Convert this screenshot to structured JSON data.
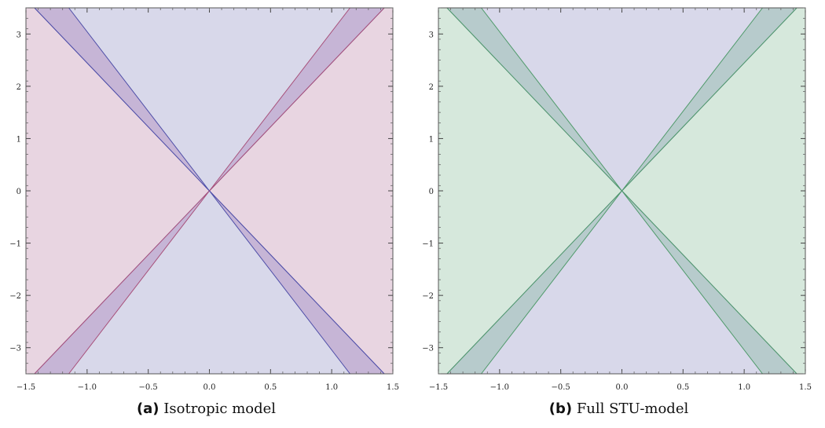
{
  "chart_data": [
    {
      "type": "area",
      "panel_tag": "(a)",
      "caption": "Isotropic model",
      "xlim": [
        -1.5,
        1.5
      ],
      "ylim": [
        -3.5,
        3.5
      ],
      "xticks": [
        "−1.5",
        "−1.0",
        "−0.5",
        "0.0",
        "0.5",
        "1.0",
        "1.5"
      ],
      "yticks": [
        "−3",
        "−2",
        "−1",
        "0",
        "1",
        "2",
        "3"
      ],
      "xtick_values": [
        -1.5,
        -1.0,
        -0.5,
        0.0,
        0.5,
        1.0,
        1.5
      ],
      "ytick_values": [
        -3,
        -2,
        -1,
        0,
        1,
        2,
        3
      ],
      "grid": false,
      "regions": [
        {
          "fill": "#e8d5e1",
          "stroke": "#a8507a",
          "kind": "background",
          "points": [
            [
              -1.5,
              -3.5
            ],
            [
              1.5,
              -3.5
            ],
            [
              1.5,
              3.5
            ],
            [
              -1.5,
              3.5
            ]
          ]
        },
        {
          "fill": "#d8d8ea",
          "stroke": "#4e4ea8",
          "kind": "hourglass",
          "points": [
            [
              -1.43,
              3.5
            ],
            [
              1.43,
              3.5
            ],
            [
              0,
              0
            ],
            [
              1.43,
              -3.5
            ],
            [
              -1.43,
              -3.5
            ],
            [
              0,
              0
            ]
          ]
        },
        {
          "fill": "#c6b5d6",
          "stroke": "#4e4ea8",
          "kind": "overlap",
          "points": [
            [
              -1.43,
              3.5
            ],
            [
              -1.15,
              3.5
            ],
            [
              0,
              0
            ]
          ]
        },
        {
          "fill": "#c6b5d6",
          "stroke": "#a8507a",
          "kind": "overlap",
          "points": [
            [
              1.15,
              3.5
            ],
            [
              1.43,
              3.5
            ],
            [
              0,
              0
            ]
          ]
        },
        {
          "fill": "#c6b5d6",
          "stroke": "#a8507a",
          "kind": "overlap",
          "points": [
            [
              -1.43,
              -3.5
            ],
            [
              -1.15,
              -3.5
            ],
            [
              0,
              0
            ]
          ]
        },
        {
          "fill": "#c6b5d6",
          "stroke": "#4e4ea8",
          "kind": "overlap",
          "points": [
            [
              1.15,
              -3.5
            ],
            [
              1.43,
              -3.5
            ],
            [
              0,
              0
            ]
          ]
        }
      ]
    },
    {
      "type": "area",
      "panel_tag": "(b)",
      "caption": "Full STU-model",
      "xlim": [
        -1.5,
        1.5
      ],
      "ylim": [
        -3.5,
        3.5
      ],
      "xticks": [
        "−1.5",
        "−1.0",
        "−0.5",
        "0.0",
        "0.5",
        "1.0",
        "1.5"
      ],
      "yticks": [
        "−3",
        "−2",
        "−1",
        "0",
        "1",
        "2",
        "3"
      ],
      "xtick_values": [
        -1.5,
        -1.0,
        -0.5,
        0.0,
        0.5,
        1.0,
        1.5
      ],
      "ytick_values": [
        -3,
        -2,
        -1,
        0,
        1,
        2,
        3
      ],
      "grid": false,
      "regions": [
        {
          "fill": "#d6e8dc",
          "stroke": "#4f9a6a",
          "kind": "background",
          "points": [
            [
              -1.5,
              -3.5
            ],
            [
              1.5,
              -3.5
            ],
            [
              1.5,
              3.5
            ],
            [
              -1.5,
              3.5
            ]
          ]
        },
        {
          "fill": "#d8d8ea",
          "stroke": "#4e4ea8",
          "kind": "hourglass",
          "points": [
            [
              -1.43,
              3.5
            ],
            [
              1.43,
              3.5
            ],
            [
              0,
              0
            ],
            [
              1.43,
              -3.5
            ],
            [
              -1.43,
              -3.5
            ],
            [
              0,
              0
            ]
          ]
        },
        {
          "fill": "#b7cbcc",
          "stroke": "#4f9a6a",
          "kind": "overlap",
          "points": [
            [
              -1.43,
              3.5
            ],
            [
              -1.15,
              3.5
            ],
            [
              0,
              0
            ]
          ]
        },
        {
          "fill": "#b7cbcc",
          "stroke": "#4f9a6a",
          "kind": "overlap",
          "points": [
            [
              1.15,
              3.5
            ],
            [
              1.43,
              3.5
            ],
            [
              0,
              0
            ]
          ]
        },
        {
          "fill": "#b7cbcc",
          "stroke": "#4f9a6a",
          "kind": "overlap",
          "points": [
            [
              -1.43,
              -3.5
            ],
            [
              -1.15,
              -3.5
            ],
            [
              0,
              0
            ]
          ]
        },
        {
          "fill": "#b7cbcc",
          "stroke": "#4f9a6a",
          "kind": "overlap",
          "points": [
            [
              1.15,
              -3.5
            ],
            [
              1.43,
              -3.5
            ],
            [
              0,
              0
            ]
          ]
        }
      ]
    }
  ]
}
